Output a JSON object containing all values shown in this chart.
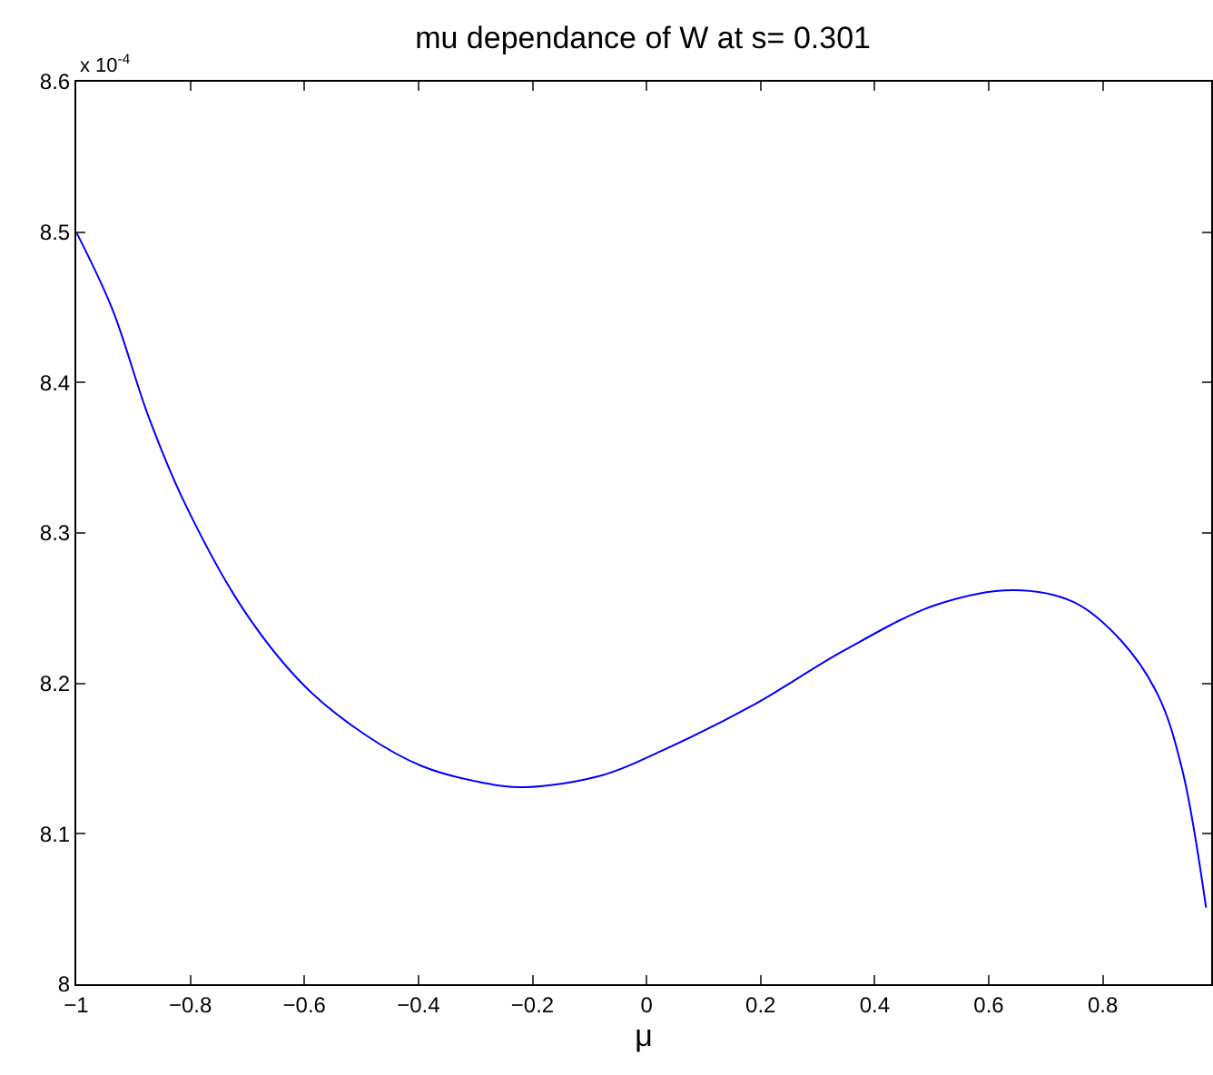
{
  "chart_data": {
    "type": "line",
    "title": "mu dependance of W at s= 0.301",
    "xlabel": "μ",
    "annotations": [
      "x 10$^{-4}$"
    ],
    "x": [
      -1,
      -0.937,
      -0.873,
      -0.81,
      -0.705,
      -0.599,
      -0.494,
      -0.394,
      -0.288,
      -0.214,
      -0.077,
      0.031,
      0.189,
      0.347,
      0.506,
      0.643,
      0.749,
      0.833,
      0.897,
      0.939,
      0.981
    ],
    "series": [
      {
        "color": "#0000ff",
        "values": [
          8.5,
          8.449,
          8.377,
          8.32,
          8.248,
          8.198,
          8.166,
          8.145,
          8.134,
          8.131,
          8.139,
          8.156,
          8.186,
          8.222,
          8.252,
          8.262,
          8.254,
          8.228,
          8.192,
          8.143,
          8.051
        ]
      }
    ],
    "xlim": [
      -1,
      0.99
    ],
    "xticks": [
      {
        "value": -1,
        "label": "−1"
      },
      {
        "value": -0.8,
        "label": "−0.8"
      },
      {
        "value": -0.6,
        "label": "−0.6"
      },
      {
        "value": -0.4,
        "label": "−0.4"
      },
      {
        "value": -0.2,
        "label": "−0.2"
      },
      0,
      0.2,
      0.4,
      0.6,
      0.8
    ],
    "ylim": [
      8,
      8.6
    ],
    "yticks": [
      8,
      8.1,
      8.2,
      8.3,
      8.4,
      8.5,
      8.6
    ],
    "grid": false,
    "marker": "none",
    "line_style": "solid"
  }
}
